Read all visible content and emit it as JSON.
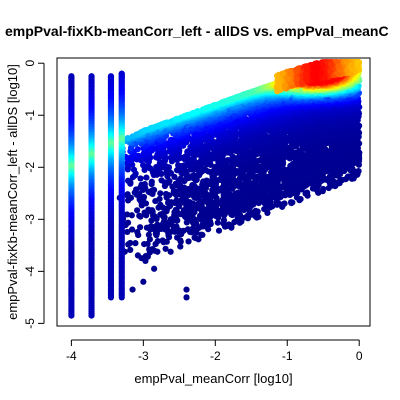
{
  "chart_data": {
    "type": "scatter",
    "title": "empPval-fixKb-meanCorr_left - allDS vs. empPval_meanC",
    "xlabel": "empPval_meanCorr [log10]",
    "ylabel": "empPval-fixKb-meanCorr_left - allDS [log10]",
    "xlim": [
      -4.2,
      0.15
    ],
    "ylim": [
      -5.05,
      0.1
    ],
    "x_ticks": [
      -4,
      -3,
      -2,
      -1,
      0
    ],
    "x_tick_labels": [
      "-4",
      "-3",
      "-2",
      "-1",
      "0"
    ],
    "y_ticks": [
      0,
      -1,
      -2,
      -3,
      -4,
      -5
    ],
    "y_tick_labels": [
      "0",
      "-1",
      "-2",
      "-3",
      "-4",
      "-5"
    ],
    "density_colors": [
      "#00008f",
      "#0000ff",
      "#007fff",
      "#00ffff",
      "#7fff7f",
      "#ffff00",
      "#ff7f00",
      "#ff0000"
    ],
    "density_ridge": {
      "x": [
        -4.0,
        -3.5,
        -3.0,
        -2.5,
        -2.0,
        -1.5,
        -1.0,
        -0.5,
        0.0
      ],
      "y": [
        -2.0,
        -1.6,
        -1.3,
        -1.05,
        -0.8,
        -0.55,
        -0.32,
        -0.12,
        0.0
      ]
    },
    "columns": [
      {
        "x": -4.0,
        "y_min": -4.85,
        "y_max": -0.25
      },
      {
        "x": -3.72,
        "y_min": -4.85,
        "y_max": -0.25
      },
      {
        "x": -3.45,
        "y_min": -4.5,
        "y_max": -0.25
      },
      {
        "x": -3.3,
        "y_min": -4.5,
        "y_max": -0.2
      }
    ],
    "outliers": [
      {
        "x": -2.4,
        "y": -4.35
      },
      {
        "x": -2.4,
        "y": -4.5
      },
      {
        "x": -3.0,
        "y": -4.2
      },
      {
        "x": -3.15,
        "y": -4.35
      },
      {
        "x": -2.85,
        "y": -3.95
      }
    ]
  }
}
